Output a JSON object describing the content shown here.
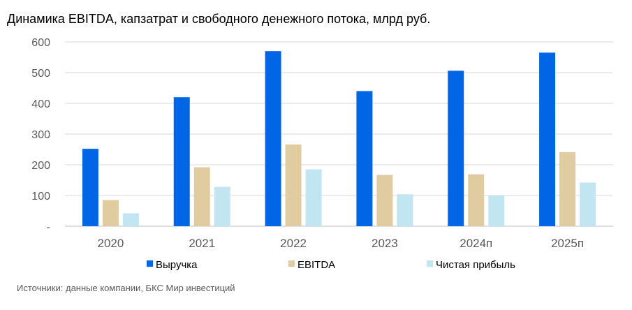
{
  "title": "Динамика EBITDA, капзатрат и свободного денежного потока, млрд руб.",
  "source": "Источники: данные компании, БКС Мир инвестиций",
  "chart_data": {
    "type": "bar",
    "categories": [
      "2020",
      "2021",
      "2022",
      "2023",
      "2024п",
      "2025п"
    ],
    "series": [
      {
        "name": "Выручка",
        "color": "#0066e6",
        "values": [
          252,
          420,
          570,
          440,
          506,
          565
        ]
      },
      {
        "name": "EBITDA",
        "color": "#e1cba0",
        "values": [
          85,
          192,
          266,
          167,
          169,
          241
        ]
      },
      {
        "name": "Чистая прибыль",
        "color": "#c2e5f2",
        "values": [
          42,
          128,
          185,
          104,
          100,
          142
        ]
      }
    ],
    "y_ticks": [
      "-",
      "100",
      "200",
      "300",
      "400",
      "500",
      "600"
    ],
    "ylim": [
      0,
      600
    ],
    "grid": true,
    "legend_position": "bottom",
    "title": "Динамика EBITDA, капзатрат и свободного денежного потока, млрд руб."
  }
}
